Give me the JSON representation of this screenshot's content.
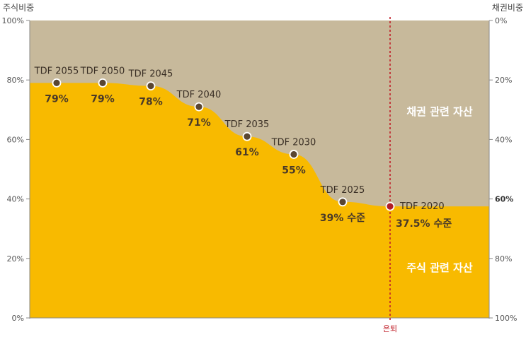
{
  "chart_data": {
    "type": "area",
    "left_axis_title": "주식비중",
    "right_axis_title": "채권비중",
    "left_ticks": [
      "100%",
      "80%",
      "60%",
      "40%",
      "20%",
      "0%"
    ],
    "left_tick_values": [
      100,
      80,
      60,
      40,
      20,
      0
    ],
    "right_ticks": [
      "0%",
      "20%",
      "40%",
      "60%",
      "80%",
      "100%"
    ],
    "right_tick_values": [
      0,
      20,
      40,
      60,
      80,
      100
    ],
    "right_highlight_tick": "60%",
    "ylim": [
      0,
      100
    ],
    "points": [
      {
        "name": "TDF 2055",
        "value": 79,
        "label": "79%"
      },
      {
        "name": "TDF 2050",
        "value": 79,
        "label": "79%"
      },
      {
        "name": "TDF 2045",
        "value": 78,
        "label": "78%"
      },
      {
        "name": "TDF 2040",
        "value": 71,
        "label": "71%"
      },
      {
        "name": "TDF 2035",
        "value": 61,
        "label": "61%"
      },
      {
        "name": "TDF 2030",
        "value": 55,
        "label": "55%"
      },
      {
        "name": "TDF 2025",
        "value": 39,
        "label": "39% 수준"
      },
      {
        "name": "TDF 2020",
        "value": 37.5,
        "label": "37.5% 수준",
        "retirement": true
      }
    ],
    "regions": {
      "bond": "채권 관련 자산",
      "equity": "주식 관련 자산"
    },
    "retirement_label": "은퇴",
    "colors": {
      "equity": "#F8BA00",
      "bond": "#C7B99B",
      "marker": "#5a4632",
      "retirement_marker": "#b01e28",
      "retirement_line": "#c0202a"
    }
  }
}
